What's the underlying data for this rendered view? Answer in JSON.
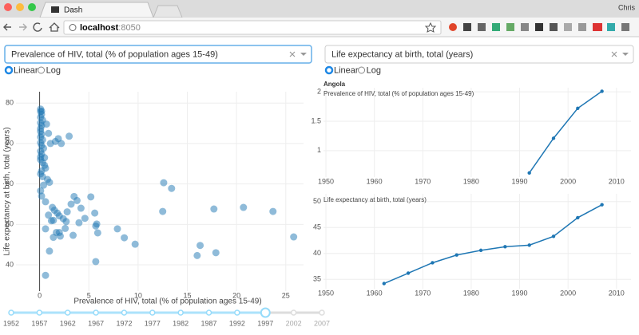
{
  "browser": {
    "tab_title": "Dash",
    "user": "Chris",
    "url_host": "localhost",
    "url_port": ":8050"
  },
  "controls": [
    {
      "dropdown": "Prevalence of HIV, total (% of population ages 15-49)",
      "options": [
        "Linear",
        "Log"
      ],
      "selected": "Linear"
    },
    {
      "dropdown": "Life expectancy at birth, total (years)",
      "options": [
        "Linear",
        "Log"
      ],
      "selected": "Linear"
    }
  ],
  "chart_data": [
    {
      "type": "scatter",
      "x_label": "Prevalence of HIV, total (% of population ages 15-49)",
      "y_label": "Life expectancy at birth, total (years)",
      "color": "#1f77b4",
      "grid": true,
      "zeroline": true,
      "xlim": [
        -2.4,
        26.8
      ],
      "ylim": [
        33.5,
        82.8
      ],
      "xticks": [
        0,
        5,
        10,
        15,
        20,
        25
      ],
      "yticks": [
        40,
        50,
        60,
        70,
        80
      ],
      "x": [
        0.1,
        0.1,
        0.2,
        0.1,
        0.3,
        0.1,
        0.2,
        0.1,
        0.1,
        0.2,
        0.1,
        0.3,
        0.1,
        0.2,
        0.4,
        0.1,
        0.2,
        0.1,
        0.1,
        0.3,
        0.5,
        0.6,
        0.2,
        0.1,
        0.3,
        0.8,
        1.0,
        0.4,
        0.1,
        0.2,
        0.6,
        1.3,
        1.5,
        1.8,
        2.0,
        2.4,
        2.7,
        1.1,
        0.9,
        0.7,
        0.2,
        0.5,
        1.6,
        1.9,
        2.2,
        3.0,
        3.5,
        3.8,
        4.2,
        4.6,
        5.2,
        5.6,
        5.8,
        5.7,
        5.9,
        2.6,
        1.7,
        1.2,
        0.9,
        3.2,
        2.8,
        1.4,
        0.6,
        1.0,
        2.1,
        7.9,
        8.6,
        9.7,
        12.6,
        13.4,
        12.5,
        17.7,
        20.7,
        23.7,
        25.8,
        17.9,
        16.3,
        16.0,
        5.7,
        0.6,
        4.0,
        3.4,
        2.0,
        1.4
      ],
      "y": [
        78.5,
        77.9,
        77.2,
        76.5,
        75.8,
        75.1,
        74.4,
        73.7,
        73.0,
        72.3,
        71.6,
        70.9,
        70.2,
        69.5,
        68.8,
        68.1,
        67.4,
        66.7,
        66.0,
        65.3,
        64.6,
        63.9,
        63.2,
        62.5,
        61.8,
        61.1,
        60.4,
        59.7,
        58.3,
        57.0,
        55.6,
        54.2,
        53.5,
        52.8,
        52.1,
        51.4,
        50.7,
        70.0,
        72.5,
        74.8,
        78.0,
        66.5,
        70.5,
        71.2,
        70.0,
        71.8,
        56.9,
        55.9,
        54.0,
        51.5,
        56.8,
        52.8,
        50.1,
        49.6,
        47.9,
        49.0,
        48.0,
        50.9,
        52.3,
        55.0,
        53.1,
        46.8,
        48.9,
        43.4,
        47.1,
        48.9,
        46.7,
        45.1,
        60.3,
        58.9,
        53.2,
        53.8,
        54.2,
        53.2,
        46.9,
        43.0,
        44.8,
        42.3,
        40.8,
        37.4,
        50.4,
        47.3,
        48.0,
        51.0
      ]
    },
    {
      "type": "line",
      "title": "Angola",
      "annotation": "Prevalence of HIV, total (% of population ages 15-49)",
      "color": "#1f77b4",
      "grid": true,
      "x": [
        1992,
        1997,
        2002,
        2007
      ],
      "values": [
        0.62,
        1.21,
        1.72,
        2.01
      ],
      "xlim": [
        1949.5,
        2013
      ],
      "ylim": [
        0.55,
        2.07
      ],
      "xticks": [
        1950,
        1960,
        1970,
        1980,
        1990,
        2000,
        2010
      ],
      "yticks": [
        1,
        1.5,
        2
      ]
    },
    {
      "type": "line",
      "annotation": "Life expectancy at birth, total (years)",
      "color": "#1f77b4",
      "grid": true,
      "x": [
        1962,
        1967,
        1972,
        1977,
        1982,
        1987,
        1992,
        1997,
        2002,
        2007
      ],
      "values": [
        34.2,
        36.2,
        38.2,
        39.7,
        40.6,
        41.3,
        41.6,
        43.3,
        46.9,
        49.4
      ],
      "xlim": [
        1949.5,
        2013
      ],
      "ylim": [
        33.2,
        51.5
      ],
      "xticks": [
        1950,
        1960,
        1970,
        1980,
        1990,
        2000,
        2010
      ],
      "yticks": [
        35,
        40,
        45,
        50
      ]
    }
  ],
  "slider": {
    "marks": [
      1952,
      1957,
      1962,
      1967,
      1972,
      1977,
      1982,
      1987,
      1992,
      1997,
      2002,
      2007
    ],
    "value": 1997
  }
}
